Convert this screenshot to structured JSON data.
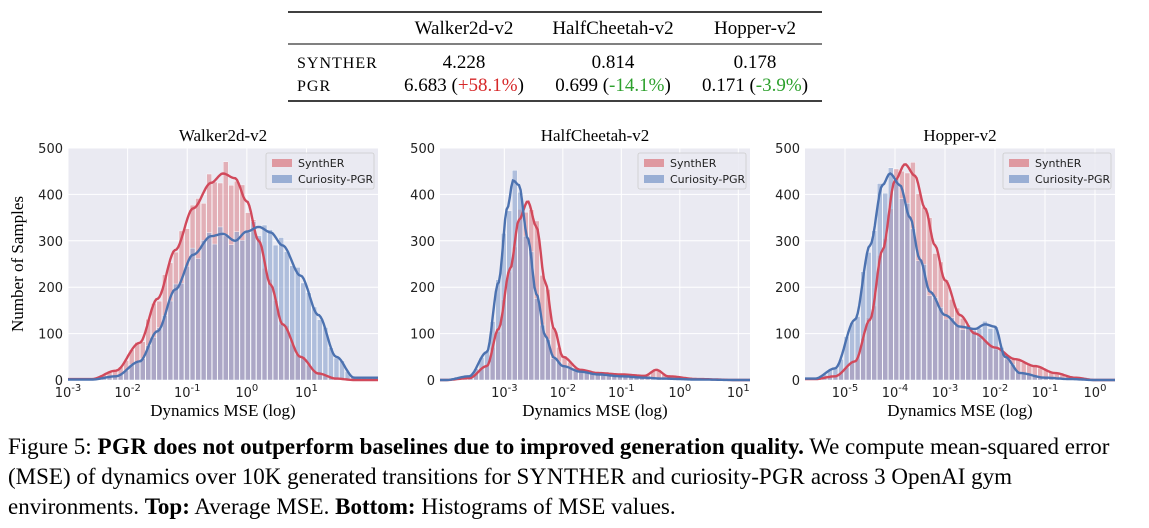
{
  "table": {
    "columns": [
      "",
      "Walker2d-v2",
      "HalfCheetah-v2",
      "Hopper-v2"
    ],
    "rows": [
      {
        "method": "SYNTHER",
        "cells": [
          {
            "value": "4.228",
            "delta": ""
          },
          {
            "value": "0.814",
            "delta": ""
          },
          {
            "value": "0.178",
            "delta": ""
          }
        ]
      },
      {
        "method": "PGR",
        "cells": [
          {
            "value": "6.683",
            "delta": "+58.1%"
          },
          {
            "value": "0.699",
            "delta": "-14.1%"
          },
          {
            "value": "0.171",
            "delta": "-3.9%"
          }
        ]
      }
    ],
    "colors": {
      "increase": "#d62728",
      "decrease": "#2ca02c"
    }
  },
  "chart_data": [
    {
      "type": "histogram",
      "title": "Walker2d-v2",
      "xlabel": "Dynamics MSE (log)",
      "ylabel": "Number of Samples",
      "xscale": "log",
      "xlim_log10": [
        -3,
        2.2
      ],
      "ylim": [
        0,
        500
      ],
      "x_ticks": [
        -3,
        -2,
        -1,
        0,
        1
      ],
      "x_tick_labels": [
        "10^-3",
        "10^-2",
        "10^-1",
        "10^0",
        "10^1"
      ],
      "y_ticks": [
        0,
        100,
        200,
        300,
        400,
        500
      ],
      "legend": [
        "SynthER",
        "Curiosity-PGR"
      ],
      "legend_position": "top-right",
      "series": [
        {
          "name": "SynthER",
          "color": "#d1495b",
          "fill": "#dd8b93",
          "x_log10": [
            -2.6,
            -2.2,
            -1.8,
            -1.5,
            -1.2,
            -0.9,
            -0.6,
            -0.4,
            -0.2,
            0.0,
            0.2,
            0.4,
            0.6,
            0.9,
            1.2,
            1.5,
            1.8
          ],
          "y": [
            2,
            20,
            80,
            175,
            280,
            370,
            425,
            445,
            435,
            385,
            300,
            205,
            120,
            50,
            14,
            3,
            0
          ]
        },
        {
          "name": "Curiosity-PGR",
          "color": "#4c72b0",
          "fill": "#8ba3cf",
          "x_log10": [
            -2.6,
            -2.2,
            -1.8,
            -1.5,
            -1.2,
            -0.9,
            -0.6,
            -0.4,
            -0.2,
            0.0,
            0.2,
            0.4,
            0.6,
            0.9,
            1.2,
            1.5,
            1.8
          ],
          "y": [
            1,
            8,
            40,
            105,
            195,
            270,
            310,
            315,
            300,
            320,
            330,
            318,
            290,
            225,
            140,
            50,
            5
          ]
        }
      ]
    },
    {
      "type": "histogram",
      "title": "HalfCheetah-v2",
      "xlabel": "Dynamics MSE (log)",
      "ylabel": "",
      "xscale": "log",
      "xlim_log10": [
        -4.1,
        1.2
      ],
      "ylim": [
        0,
        500
      ],
      "x_ticks": [
        -3,
        -2,
        -1,
        0,
        1
      ],
      "x_tick_labels": [
        "10^-3",
        "10^-2",
        "10^-1",
        "10^0",
        "10^1"
      ],
      "y_ticks": [
        0,
        100,
        200,
        300,
        400,
        500
      ],
      "legend": [
        "SynthER",
        "Curiosity-PGR"
      ],
      "legend_position": "top-right",
      "series": [
        {
          "name": "SynthER",
          "color": "#d1495b",
          "fill": "#dd8b93",
          "x_log10": [
            -4.0,
            -3.6,
            -3.3,
            -3.1,
            -2.9,
            -2.75,
            -2.6,
            -2.45,
            -2.3,
            -2.15,
            -2.0,
            -1.7,
            -1.4,
            -1.0,
            -0.6,
            -0.4,
            -0.2,
            0.3,
            1.0
          ],
          "y": [
            0,
            4,
            30,
            110,
            240,
            345,
            385,
            330,
            210,
            110,
            50,
            22,
            15,
            12,
            9,
            22,
            8,
            2,
            0
          ]
        },
        {
          "name": "Curiosity-PGR",
          "color": "#4c72b0",
          "fill": "#8ba3cf",
          "x_log10": [
            -4.0,
            -3.6,
            -3.3,
            -3.1,
            -2.95,
            -2.85,
            -2.75,
            -2.6,
            -2.45,
            -2.3,
            -2.15,
            -2.0,
            -1.7,
            -1.4,
            -1.0,
            -0.6,
            -0.3,
            0.3,
            1.0
          ],
          "y": [
            0,
            8,
            60,
            210,
            370,
            430,
            420,
            305,
            185,
            95,
            48,
            30,
            18,
            12,
            8,
            5,
            3,
            1,
            0
          ]
        }
      ]
    },
    {
      "type": "histogram",
      "title": "Hopper-v2",
      "xlabel": "Dynamics MSE (log)",
      "ylabel": "",
      "xscale": "log",
      "xlim_log10": [
        -5.8,
        0.4
      ],
      "ylim": [
        0,
        500
      ],
      "x_ticks": [
        -5,
        -4,
        -3,
        -2,
        -1,
        0
      ],
      "x_tick_labels": [
        "10^-5",
        "10^-4",
        "10^-3",
        "10^-2",
        "10^-1",
        "10^0"
      ],
      "y_ticks": [
        0,
        100,
        200,
        300,
        400,
        500
      ],
      "legend": [
        "SynthER",
        "Curiosity-PGR"
      ],
      "legend_position": "top-right",
      "series": [
        {
          "name": "SynthER",
          "color": "#d1495b",
          "fill": "#dd8b93",
          "x_log10": [
            -5.6,
            -5.2,
            -4.8,
            -4.5,
            -4.25,
            -4.0,
            -3.8,
            -3.6,
            -3.4,
            -3.2,
            -3.0,
            -2.7,
            -2.4,
            -2.0,
            -1.6,
            -1.2,
            -0.8,
            -0.4,
            0.0
          ],
          "y": [
            2,
            8,
            40,
            130,
            280,
            430,
            465,
            440,
            370,
            290,
            215,
            140,
            100,
            70,
            45,
            30,
            15,
            5,
            0
          ]
        },
        {
          "name": "Curiosity-PGR",
          "color": "#4c72b0",
          "fill": "#8ba3cf",
          "x_log10": [
            -5.6,
            -5.2,
            -4.8,
            -4.5,
            -4.25,
            -4.1,
            -3.9,
            -3.7,
            -3.5,
            -3.3,
            -3.0,
            -2.7,
            -2.4,
            -2.2,
            -2.0,
            -1.8,
            -1.5,
            -1.0,
            -0.5,
            0.0
          ],
          "y": [
            3,
            25,
            130,
            290,
            420,
            445,
            420,
            350,
            260,
            190,
            140,
            115,
            110,
            120,
            115,
            50,
            15,
            5,
            2,
            0
          ]
        }
      ]
    }
  ],
  "caption": {
    "figure_label": "Figure 5:",
    "bold_method": "PGR",
    "bold_statement": "does not outperform baselines due to improved generation quality.",
    "text_1": "We compute mean-squared error (MSE) of dynamics over 10K generated transitions for",
    "method_1": "SYNTHER",
    "text_2": "and curiosity-",
    "method_2": "PGR",
    "text_3": "across 3 OpenAI gym environments.",
    "top_label": "Top:",
    "top_text": "Average MSE.",
    "bottom_label": "Bottom:",
    "bottom_text": "Histograms of MSE values."
  }
}
